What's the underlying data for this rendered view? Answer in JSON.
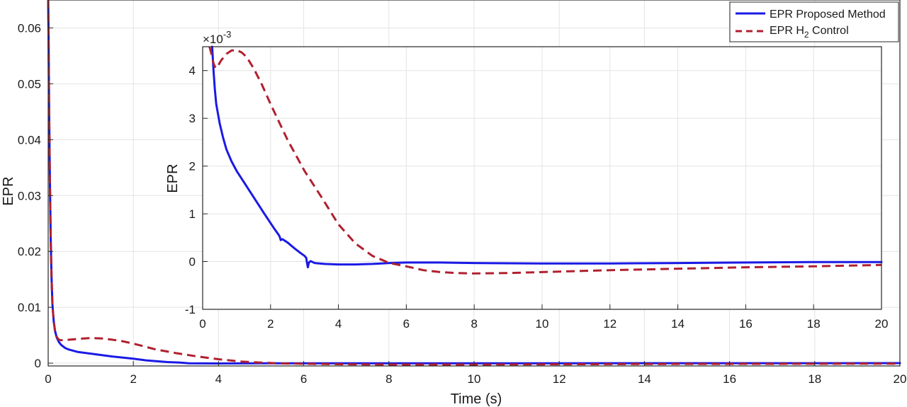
{
  "chart_data": [
    {
      "name": "main",
      "type": "line",
      "xlabel": "Time (s)",
      "ylabel": "EPR",
      "xlim": [
        0,
        20
      ],
      "ylim": [
        -0.0005,
        0.065
      ],
      "xticks": [
        0,
        2,
        4,
        6,
        8,
        10,
        12,
        14,
        16,
        18,
        20
      ],
      "xtick_labels": [
        "0",
        "2",
        "4",
        "6",
        "8",
        "10",
        "12",
        "14",
        "16",
        "18",
        "20"
      ],
      "yticks": [
        0,
        0.01,
        0.02,
        0.03,
        0.04,
        0.05,
        0.06
      ],
      "ytick_labels": [
        "0",
        "0.01",
        "0.02",
        "0.03",
        "0.04",
        "0.05",
        "0.06"
      ],
      "grid": true,
      "legend": {
        "position": "top-right",
        "entries": [
          {
            "label": "EPR Proposed Method",
            "series": 0
          },
          {
            "label_main": "EPR H",
            "label_sub": "2",
            "label_tail": " Control",
            "series": 1
          }
        ]
      },
      "series": [
        {
          "name": "EPR Proposed Method",
          "color": "#1a1ae6",
          "style": "solid",
          "x": [
            0,
            0.01,
            0.02,
            0.04,
            0.06,
            0.08,
            0.1,
            0.13,
            0.16,
            0.2,
            0.25,
            0.3,
            0.4,
            0.5,
            0.7,
            1,
            1.5,
            2,
            2.3,
            2.8,
            3.1,
            3.3,
            4,
            5,
            6,
            8,
            10,
            14,
            20
          ],
          "y": [
            0.065,
            0.058,
            0.047,
            0.033,
            0.022,
            0.015,
            0.0105,
            0.0075,
            0.0058,
            0.0046,
            0.0038,
            0.0033,
            0.0027,
            0.0024,
            0.002,
            0.0017,
            0.0012,
            0.0008,
            0.0005,
            0.0002,
            0.0001,
            -2e-05,
            -5e-05,
            -3e-05,
            -2e-05,
            -2e-05,
            -3e-05,
            -1e-05,
            0
          ]
        },
        {
          "name": "EPR H2 Control",
          "color": "#b0202f",
          "style": "dashed",
          "x": [
            0,
            0.01,
            0.02,
            0.04,
            0.06,
            0.08,
            0.1,
            0.13,
            0.16,
            0.2,
            0.25,
            0.3,
            0.5,
            0.8,
            1,
            1.3,
            1.7,
            2,
            2.5,
            3,
            3.5,
            4,
            4.5,
            5,
            5.5,
            6,
            7,
            8,
            10,
            14,
            20
          ],
          "y": [
            0.065,
            0.058,
            0.047,
            0.033,
            0.022,
            0.015,
            0.0105,
            0.0075,
            0.0058,
            0.0047,
            0.0042,
            0.0041,
            0.0042,
            0.0044,
            0.0045,
            0.0044,
            0.004,
            0.0035,
            0.0025,
            0.0018,
            0.0012,
            0.0007,
            0.0003,
            0.0001,
            -5e-05,
            -0.0001,
            -0.0002,
            -0.00025,
            -0.00025,
            -0.00015,
            -8e-05
          ]
        }
      ]
    },
    {
      "name": "inset",
      "type": "line",
      "ylabel": "EPR",
      "y_exponent_base": "×10",
      "y_exponent_power": "-3",
      "xlim": [
        0,
        20
      ],
      "ylim": [
        -1,
        4.5
      ],
      "xticks": [
        0,
        2,
        4,
        6,
        8,
        10,
        12,
        14,
        16,
        18,
        20
      ],
      "xtick_labels": [
        "0",
        "2",
        "4",
        "6",
        "8",
        "10",
        "12",
        "14",
        "16",
        "18",
        "20"
      ],
      "yticks": [
        -1,
        0,
        1,
        2,
        3,
        4
      ],
      "ytick_labels": [
        "-1",
        "0",
        "1",
        "2",
        "3",
        "4"
      ],
      "grid": true,
      "units_note": "y values in units of 1e-3",
      "series": [
        {
          "name": "EPR Proposed Method",
          "color": "#1a1ae6",
          "style": "solid",
          "x": [
            0.28,
            0.32,
            0.36,
            0.4,
            0.5,
            0.6,
            0.7,
            0.85,
            1,
            1.2,
            1.5,
            1.8,
            2.1,
            2.25,
            2.28,
            2.3,
            2.35,
            2.5,
            2.7,
            2.9,
            3.0,
            3.05,
            3.08,
            3.1,
            3.13,
            3.18,
            3.3,
            3.6,
            4,
            4.5,
            5,
            5.5,
            6,
            7,
            8,
            10,
            12,
            14,
            16,
            18,
            20
          ],
          "y": [
            4.6,
            4.0,
            3.6,
            3.3,
            2.9,
            2.6,
            2.35,
            2.1,
            1.9,
            1.68,
            1.35,
            1.02,
            0.7,
            0.55,
            0.5,
            0.45,
            0.47,
            0.4,
            0.28,
            0.17,
            0.12,
            0.08,
            -0.05,
            -0.12,
            -0.02,
            0.01,
            -0.03,
            -0.05,
            -0.06,
            -0.06,
            -0.05,
            -0.03,
            -0.02,
            -0.02,
            -0.03,
            -0.04,
            -0.04,
            -0.03,
            -0.02,
            -0.01,
            -0.01
          ]
        },
        {
          "name": "EPR H2 Control",
          "color": "#b0202f",
          "style": "dashed",
          "x": [
            0.2,
            0.26,
            0.32,
            0.38,
            0.45,
            0.55,
            0.7,
            0.85,
            1,
            1.15,
            1.3,
            1.5,
            1.75,
            2,
            2.5,
            3,
            3.5,
            4,
            4.5,
            5,
            5.5,
            6,
            6.5,
            7,
            7.5,
            8,
            9,
            10,
            12,
            14,
            16,
            18,
            20
          ],
          "y": [
            4.55,
            4.35,
            4.15,
            4.05,
            4.1,
            4.22,
            4.35,
            4.42,
            4.43,
            4.38,
            4.28,
            4.05,
            3.7,
            3.3,
            2.55,
            1.9,
            1.35,
            0.78,
            0.38,
            0.12,
            -0.03,
            -0.1,
            -0.18,
            -0.22,
            -0.24,
            -0.25,
            -0.24,
            -0.22,
            -0.18,
            -0.15,
            -0.12,
            -0.1,
            -0.07
          ]
        }
      ]
    }
  ]
}
